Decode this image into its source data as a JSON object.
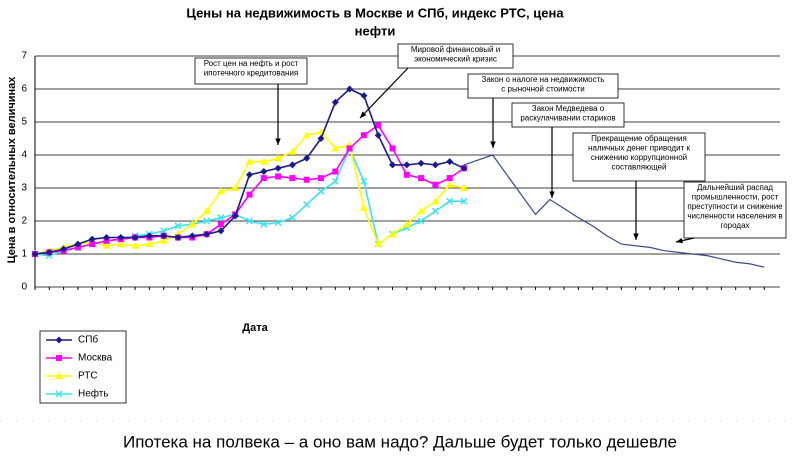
{
  "chart_data": {
    "type": "line",
    "title": [
      "Цены на недвижимость в Москве и СПб, индекс РТС, цена",
      "нефти"
    ],
    "ylabel": "Цена в относительных величинах",
    "xlabel": "Дата",
    "caption": "Ипотека на полвека – а оно вам надо? Дальше будет только дешевле",
    "ylim": [
      0,
      7
    ],
    "yticks": [
      0,
      1,
      2,
      3,
      4,
      5,
      6,
      7
    ],
    "grid": true,
    "legend": "bottom-left",
    "categories": [
      null,
      null,
      null,
      null,
      null,
      null,
      null,
      null,
      null,
      null,
      null,
      null,
      null,
      null,
      null,
      null,
      null,
      null,
      null,
      null,
      null,
      null,
      null,
      null,
      null,
      null,
      null,
      null,
      null,
      null,
      null,
      null,
      null,
      null,
      null,
      null,
      null,
      null,
      null,
      null,
      null,
      null,
      null,
      null,
      null,
      null,
      null,
      null,
      null,
      null,
      null,
      null
    ],
    "series": [
      {
        "name": "СПб",
        "color": "#1a1a8c",
        "marker": "diamond",
        "values": [
          1.0,
          1.05,
          1.15,
          1.3,
          1.45,
          1.5,
          1.5,
          1.5,
          1.55,
          1.55,
          1.5,
          1.55,
          1.6,
          1.7,
          2.15,
          3.4,
          3.5,
          3.6,
          3.7,
          3.9,
          4.5,
          5.6,
          6.0,
          5.8,
          4.6,
          3.7,
          3.7,
          3.75,
          3.7,
          3.8,
          3.6,
          null,
          null,
          null,
          null,
          null,
          null,
          null,
          null,
          null,
          null,
          null,
          null,
          null,
          null,
          null,
          null,
          null,
          null,
          null,
          null,
          null
        ]
      },
      {
        "name": "Москва",
        "color": "#ff00ff",
        "marker": "square",
        "values": [
          1.0,
          1.05,
          1.1,
          1.2,
          1.3,
          1.4,
          1.45,
          1.5,
          1.5,
          1.55,
          1.5,
          1.5,
          1.6,
          1.9,
          2.2,
          2.8,
          3.3,
          3.35,
          3.3,
          3.25,
          3.3,
          3.5,
          4.2,
          4.6,
          4.9,
          4.2,
          3.4,
          3.3,
          3.1,
          3.3,
          3.6,
          null,
          null,
          null,
          null,
          null,
          null,
          null,
          null,
          null,
          null,
          null,
          null,
          null,
          null,
          null,
          null,
          null,
          null,
          null,
          null,
          null
        ]
      },
      {
        "name": "РТС",
        "color": "#ffff00",
        "marker": "triangle",
        "values": [
          1.0,
          1.1,
          1.2,
          1.3,
          1.35,
          1.25,
          1.3,
          1.25,
          1.3,
          1.4,
          1.6,
          1.9,
          2.3,
          2.9,
          3.0,
          3.8,
          3.8,
          3.9,
          4.1,
          4.6,
          4.7,
          4.2,
          4.3,
          2.4,
          1.3,
          1.6,
          1.9,
          2.3,
          2.6,
          3.1,
          3.0,
          null,
          null,
          null,
          null,
          null,
          null,
          null,
          null,
          null,
          null,
          null,
          null,
          null,
          null,
          null,
          null,
          null,
          null,
          null,
          null,
          null
        ]
      },
      {
        "name": "Нефть",
        "color": "#40e0f0",
        "marker": "cross",
        "values": [
          1.0,
          0.95,
          1.1,
          1.2,
          1.3,
          1.4,
          1.45,
          1.55,
          1.6,
          1.7,
          1.85,
          1.9,
          2.0,
          2.1,
          2.2,
          2.0,
          1.9,
          1.95,
          2.1,
          2.5,
          2.9,
          3.2,
          4.2,
          3.2,
          1.3,
          1.6,
          1.8,
          2.0,
          2.3,
          2.6,
          2.6,
          null,
          null,
          null,
          null,
          null,
          null,
          null,
          null,
          null,
          null,
          null,
          null,
          null,
          null,
          null,
          null,
          null,
          null,
          null,
          null,
          null
        ]
      }
    ],
    "forecast": {
      "color": "#3c4a8c",
      "values": [
        null,
        null,
        null,
        null,
        null,
        null,
        null,
        null,
        null,
        null,
        null,
        null,
        null,
        null,
        null,
        null,
        null,
        null,
        null,
        null,
        null,
        null,
        null,
        null,
        null,
        null,
        null,
        null,
        null,
        null,
        3.7,
        3.85,
        4.0,
        3.4,
        2.8,
        2.2,
        2.65,
        2.38,
        2.1,
        1.85,
        1.55,
        1.3,
        1.25,
        1.2,
        1.1,
        1.05,
        1.0,
        0.95,
        0.85,
        0.75,
        0.7,
        0.6
      ]
    },
    "annotations": [
      [
        "Рост цен на нефть и рост",
        "ипотечного кредитования"
      ],
      [
        "Мировой финансовый и",
        "экономический кризис"
      ],
      [
        "Закон о налоге на недвижимость",
        "с рыночной стоимости"
      ],
      [
        "Закон Медведева о",
        "раскулачивании стариков"
      ],
      [
        "Прекращение обращения",
        "наличных денег приводит к",
        "снижению коррупционной",
        "составляющей"
      ],
      [
        "Дальнейший распад",
        "промышленности, рост",
        "преступности и снижение",
        "численности населения в",
        "городах"
      ]
    ]
  }
}
